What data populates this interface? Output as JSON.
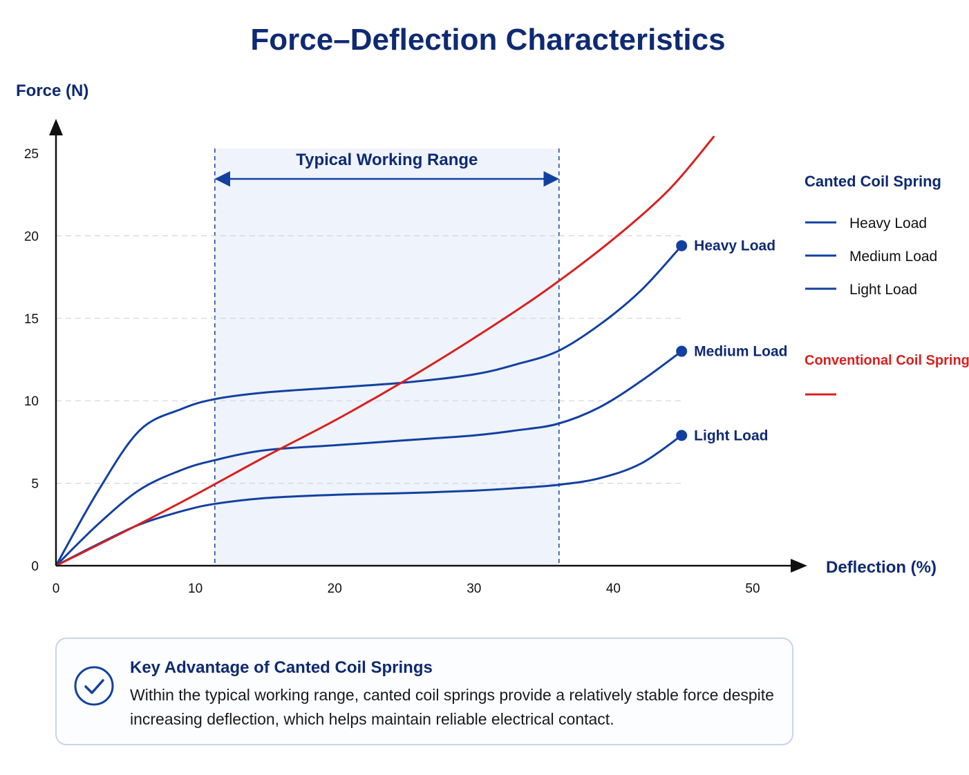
{
  "chart_data": {
    "type": "line",
    "title": "Force–Deflection Characteristics",
    "xlabel": "Deflection (%)",
    "ylabel": "Force (N)",
    "xlim": [
      0,
      50
    ],
    "ylim": [
      0,
      25
    ],
    "x_ticks": [
      "0",
      "10",
      "20",
      "30",
      "40",
      "50"
    ],
    "y_ticks": [
      "0",
      "5",
      "10",
      "15",
      "20",
      "25"
    ],
    "grid": "dashed horizontal",
    "working_range": {
      "label": "Typical Working Range",
      "x": [
        11.4,
        36.1
      ]
    },
    "series": [
      {
        "name": "Heavy Load",
        "group": "Canted Coil Spring",
        "color": "#1340a0",
        "x": [
          0,
          3,
          6,
          9,
          11.4,
          15,
          20,
          25,
          30,
          33,
          36,
          39,
          42,
          44.9
        ],
        "y": [
          0,
          4.5,
          8.2,
          9.5,
          10.1,
          10.5,
          10.8,
          11.1,
          11.6,
          12.2,
          13.0,
          14.6,
          16.7,
          19.4
        ]
      },
      {
        "name": "Medium Load",
        "group": "Canted Coil Spring",
        "color": "#1340a0",
        "x": [
          0,
          3,
          6,
          9,
          11.4,
          15,
          20,
          25,
          30,
          33,
          36,
          39,
          42,
          44.9
        ],
        "y": [
          0,
          2.5,
          4.6,
          5.8,
          6.4,
          7.0,
          7.3,
          7.6,
          7.9,
          8.2,
          8.6,
          9.6,
          11.2,
          13.0
        ]
      },
      {
        "name": "Light Load",
        "group": "Canted Coil Spring",
        "color": "#1340a0",
        "x": [
          0,
          3,
          6,
          9,
          11.4,
          15,
          20,
          25,
          30,
          33,
          36,
          39,
          42,
          44.9
        ],
        "y": [
          0,
          1.3,
          2.5,
          3.3,
          3.75,
          4.1,
          4.3,
          4.4,
          4.55,
          4.7,
          4.9,
          5.3,
          6.2,
          7.9
        ]
      },
      {
        "name": "Conventional Coil Spring",
        "group": "Conventional Coil Spring",
        "color": "#d8201f",
        "x": [
          0,
          5,
          10,
          15,
          20,
          25,
          30,
          35,
          40,
          44,
          47.2
        ],
        "y": [
          0,
          2.1,
          4.3,
          6.6,
          8.8,
          11.2,
          13.8,
          16.6,
          19.8,
          22.8,
          26.0
        ]
      }
    ],
    "end_labels": [
      "Heavy Load",
      "Medium Load",
      "Light Load"
    ],
    "legend": {
      "placement": "right",
      "group1_title": "Canted Coil Spring",
      "items": [
        "Heavy Load",
        "Medium Load",
        "Light Load"
      ],
      "group2_title": "Conventional Coil Spring"
    }
  },
  "note": {
    "title": "Key Advantage of Canted Coil Springs",
    "text": "Within the typical working range, canted coil springs provide a relatively stable force despite increasing deflection, which helps maintain reliable electrical contact.",
    "icon": "check-circle-icon"
  },
  "colors": {
    "navy": "#0f2a72",
    "blue_series": "#1340a0",
    "red_series": "#d8201f",
    "range_fill": "#eef3fc"
  }
}
